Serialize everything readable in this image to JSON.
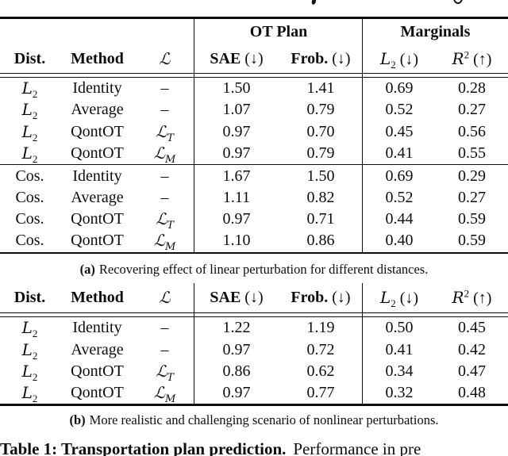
{
  "table_a": {
    "group_header": {
      "ot_plan": "OT Plan",
      "marginals": "Marginals"
    },
    "header": {
      "dist": "Dist.",
      "method": "Method",
      "loss": "ℒ",
      "sae": "SAE",
      "sae_arrow": "(↓)",
      "frob": "Frob.",
      "frob_arrow": "(↓)",
      "l2_base": "L",
      "l2_sub": "2",
      "l2_arrow": "(↓)",
      "r2_base": "R",
      "r2_sup": "2",
      "r2_arrow": "(↑)"
    },
    "rows": [
      {
        "dist": "L",
        "dist_sub": "2",
        "method": "Identity",
        "loss": "–",
        "sae": "1.50",
        "frob": "1.41",
        "l2": "0.69",
        "r2": "0.28"
      },
      {
        "dist": "L",
        "dist_sub": "2",
        "method": "Average",
        "loss": "–",
        "sae": "1.07",
        "frob": "0.79",
        "l2": "0.52",
        "r2": "0.27"
      },
      {
        "dist": "L",
        "dist_sub": "2",
        "method": "QontOT",
        "loss": "ℒ",
        "loss_sub": "T",
        "sae": "0.97",
        "frob": "0.70",
        "l2": "0.45",
        "r2": "0.56"
      },
      {
        "dist": "L",
        "dist_sub": "2",
        "method": "QontOT",
        "loss": "ℒ",
        "loss_sub": "M",
        "sae": "0.97",
        "frob": "0.79",
        "l2": "0.41",
        "r2": "0.55"
      },
      {
        "dist": "Cos.",
        "method": "Identity",
        "loss": "–",
        "sae": "1.67",
        "frob": "1.50",
        "l2": "0.69",
        "r2": "0.29"
      },
      {
        "dist": "Cos.",
        "method": "Average",
        "loss": "–",
        "sae": "1.11",
        "frob": "0.82",
        "l2": "0.52",
        "r2": "0.27"
      },
      {
        "dist": "Cos.",
        "method": "QontOT",
        "loss": "ℒ",
        "loss_sub": "T",
        "sae": "0.97",
        "frob": "0.71",
        "l2": "0.44",
        "r2": "0.59"
      },
      {
        "dist": "Cos.",
        "method": "QontOT",
        "loss": "ℒ",
        "loss_sub": "M",
        "sae": "1.10",
        "frob": "0.86",
        "l2": "0.40",
        "r2": "0.59"
      }
    ],
    "caption_label": "(a)",
    "caption_text": "Recovering effect of linear perturbation for different distances."
  },
  "table_b": {
    "header": {
      "dist": "Dist.",
      "method": "Method",
      "loss": "ℒ",
      "sae": "SAE",
      "sae_arrow": "(↓)",
      "frob": "Frob.",
      "frob_arrow": "(↓)",
      "l2_base": "L",
      "l2_sub": "2",
      "l2_arrow": "(↓)",
      "r2_base": "R",
      "r2_sup": "2",
      "r2_arrow": "(↑)"
    },
    "rows": [
      {
        "dist": "L",
        "dist_sub": "2",
        "method": "Identity",
        "loss": "–",
        "sae": "1.22",
        "frob": "1.19",
        "l2": "0.50",
        "r2": "0.45"
      },
      {
        "dist": "L",
        "dist_sub": "2",
        "method": "Average",
        "loss": "–",
        "sae": "0.97",
        "frob": "0.72",
        "l2": "0.41",
        "r2": "0.42"
      },
      {
        "dist": "L",
        "dist_sub": "2",
        "method": "QontOT",
        "loss": "ℒ",
        "loss_sub": "T",
        "sae": "0.86",
        "frob": "0.62",
        "l2": "0.34",
        "r2": "0.47"
      },
      {
        "dist": "L",
        "dist_sub": "2",
        "method": "QontOT",
        "loss": "ℒ",
        "loss_sub": "M",
        "sae": "0.97",
        "frob": "0.77",
        "l2": "0.32",
        "r2": "0.48"
      }
    ],
    "caption_label": "(b)",
    "caption_text": "More realistic and challenging scenario of nonlinear perturbations."
  },
  "footer": {
    "bold": "Table 1: Transportation plan prediction.",
    "rest": "Performance in pre"
  }
}
